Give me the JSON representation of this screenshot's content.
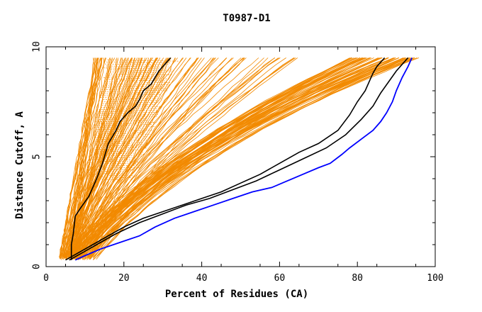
{
  "chart_data": {
    "type": "line",
    "title": "T0987-D1",
    "xlabel": "Percent of Residues (CA)",
    "ylabel": "Distance Cutoff, A",
    "xlim": [
      0,
      100
    ],
    "ylim": [
      0,
      10
    ],
    "x_ticks": [
      0,
      20,
      40,
      60,
      80,
      100
    ],
    "y_ticks": [
      0,
      5,
      10
    ],
    "grid": false,
    "colors": {
      "background_models": "#f28a00",
      "highlight": "#0000ff",
      "reference": "#000000",
      "axes": "#000000"
    },
    "series": [
      {
        "group": "reference",
        "color": "#000000",
        "x": [
          6.5,
          6.5,
          7.0,
          7.5,
          9.0,
          11.0,
          13.0,
          14.5,
          16.0,
          18.0,
          19.0,
          21.0,
          23.0,
          24.0,
          25.0,
          27.0,
          28.0,
          29.0,
          30.0,
          31.0,
          32.0
        ],
        "y": [
          0.3,
          1.0,
          1.5,
          2.3,
          2.7,
          3.2,
          4.0,
          4.7,
          5.6,
          6.2,
          6.6,
          7.0,
          7.3,
          7.6,
          8.0,
          8.3,
          8.6,
          8.9,
          9.1,
          9.3,
          9.5
        ]
      },
      {
        "group": "reference",
        "color": "#000000",
        "x": [
          5.0,
          8.0,
          12.0,
          16.0,
          20.0,
          25.0,
          30.0,
          35.0,
          40.0,
          45.0,
          50.0,
          55.0,
          60.0,
          65.0,
          70.0,
          75.0,
          78.0,
          80.0,
          82.0,
          83.0,
          84.0,
          85.0,
          86.0,
          87.0
        ],
        "y": [
          0.3,
          0.6,
          1.0,
          1.4,
          1.8,
          2.2,
          2.5,
          2.8,
          3.1,
          3.4,
          3.8,
          4.2,
          4.7,
          5.2,
          5.6,
          6.2,
          6.9,
          7.5,
          8.0,
          8.4,
          8.8,
          9.1,
          9.3,
          9.5
        ]
      },
      {
        "group": "reference",
        "color": "#000000",
        "x": [
          6.0,
          9.0,
          13.0,
          18.0,
          24.0,
          30.0,
          36.0,
          42.0,
          48.0,
          54.0,
          60.0,
          66.0,
          72.0,
          77.0,
          81.0,
          84.0,
          86.0,
          88.0,
          90.0,
          91.5,
          93.0
        ],
        "y": [
          0.3,
          0.6,
          1.0,
          1.5,
          2.0,
          2.4,
          2.8,
          3.1,
          3.5,
          3.9,
          4.4,
          4.9,
          5.4,
          6.0,
          6.7,
          7.3,
          7.9,
          8.4,
          8.9,
          9.2,
          9.5
        ]
      },
      {
        "group": "highlight",
        "color": "#0000ff",
        "x": [
          7.5,
          10.0,
          14.0,
          19.0,
          24.0,
          28.0,
          33.0,
          38.0,
          43.0,
          48.0,
          53.0,
          58.0,
          62.0,
          66.0,
          70.0,
          73.0,
          76.0,
          78.0,
          81.0,
          84.0,
          86.0,
          87.5,
          89.0,
          90.0,
          91.5,
          93.0,
          94.0
        ],
        "y": [
          0.3,
          0.5,
          0.8,
          1.1,
          1.4,
          1.8,
          2.2,
          2.5,
          2.8,
          3.1,
          3.4,
          3.6,
          3.9,
          4.2,
          4.5,
          4.7,
          5.1,
          5.4,
          5.8,
          6.2,
          6.6,
          7.0,
          7.5,
          8.0,
          8.6,
          9.1,
          9.5
        ]
      }
    ]
  }
}
